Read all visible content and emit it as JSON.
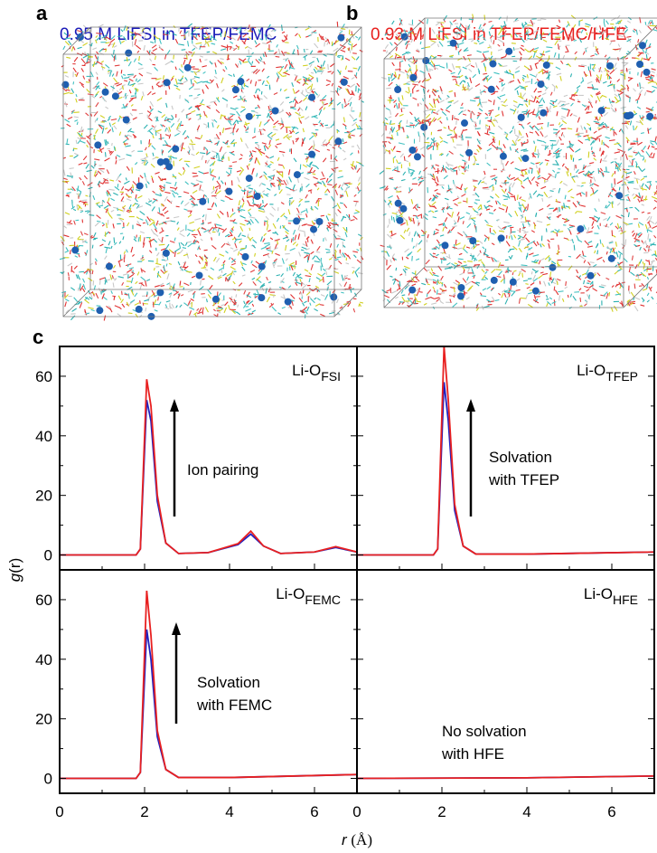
{
  "panels": {
    "a": "a",
    "b": "b",
    "c": "c"
  },
  "snapshots": [
    {
      "title": "0.95 M LiFSI in TFEP/FEMC",
      "color": "#1a1ab8"
    },
    {
      "title": "0.93 M LiFSI in TFEP/FEMC/HFE",
      "color": "#e8201e"
    }
  ],
  "chart_data": {
    "type": "line",
    "xlabel_italic": "r",
    "xlabel_unit": "(Å)",
    "ylabel_italic": "g",
    "ylabel_rest": "(r)",
    "xlim": [
      0,
      7
    ],
    "ylim": [
      -5,
      70
    ],
    "xticks": [
      "0",
      "2",
      "4",
      "6"
    ],
    "yticks": [
      "0",
      "20",
      "40",
      "60"
    ],
    "series_names": [
      "0.95 M LiFSI in TFEP/FEMC",
      "0.93 M LiFSI in TFEP/FEMC/HFE"
    ],
    "series_colors": [
      "#2020c0",
      "#e82020"
    ],
    "subplots": [
      {
        "label": "Li-O",
        "sub": "FSI",
        "annotation": [
          "Ion pairing"
        ],
        "arrow": true,
        "series": [
          {
            "x": [
              0,
              1.8,
              1.9,
              2.05,
              2.15,
              2.3,
              2.5,
              2.8,
              3.5,
              4.2,
              4.5,
              4.8,
              5.2,
              6,
              6.5,
              7
            ],
            "y": [
              0,
              0,
              2,
              52,
              45,
              18,
              4,
              0.5,
              0.8,
              3.5,
              7,
              3,
              0.5,
              1,
              2.5,
              1
            ]
          },
          {
            "x": [
              0,
              1.8,
              1.9,
              2.05,
              2.15,
              2.3,
              2.5,
              2.8,
              3.5,
              4.2,
              4.5,
              4.8,
              5.2,
              6,
              6.5,
              7
            ],
            "y": [
              0,
              0,
              2,
              59,
              50,
              20,
              4,
              0.5,
              0.8,
              3.8,
              8,
              3,
              0.5,
              1,
              2.8,
              1
            ]
          }
        ]
      },
      {
        "label": "Li-O",
        "sub": "TFEP",
        "annotation": [
          "Solvation",
          "with TFEP"
        ],
        "arrow": true,
        "series": [
          {
            "x": [
              0,
              1.8,
              1.9,
              2.05,
              2.15,
              2.3,
              2.5,
              2.8,
              4,
              7
            ],
            "y": [
              0,
              0,
              2,
              58,
              45,
              15,
              3,
              0.3,
              0.3,
              1
            ]
          },
          {
            "x": [
              0,
              1.8,
              1.9,
              2.05,
              2.15,
              2.3,
              2.5,
              2.8,
              4,
              7
            ],
            "y": [
              0,
              0,
              2,
              70,
              52,
              17,
              3,
              0.3,
              0.3,
              1
            ]
          }
        ]
      },
      {
        "label": "Li-O",
        "sub": "FEMC",
        "annotation": [
          "Solvation",
          "with FEMC"
        ],
        "arrow": true,
        "series": [
          {
            "x": [
              0,
              1.8,
              1.9,
              2.05,
              2.15,
              2.3,
              2.5,
              2.8,
              4,
              7
            ],
            "y": [
              0,
              0,
              2,
              50,
              40,
              14,
              3,
              0.3,
              0.3,
              1.3
            ]
          },
          {
            "x": [
              0,
              1.8,
              1.9,
              2.05,
              2.15,
              2.3,
              2.5,
              2.8,
              4,
              7
            ],
            "y": [
              0,
              0,
              2,
              63,
              48,
              16,
              3,
              0.3,
              0.3,
              1.3
            ]
          }
        ]
      },
      {
        "label": "Li-O",
        "sub": "HFE",
        "annotation": [
          "No solvation",
          "with HFE"
        ],
        "arrow": false,
        "series": [
          {
            "x": [
              0,
              4,
              7
            ],
            "y": [
              0,
              0.2,
              0.8
            ]
          },
          {
            "x": [
              0,
              4,
              7
            ],
            "y": [
              0,
              0.2,
              0.8
            ]
          }
        ]
      }
    ]
  }
}
